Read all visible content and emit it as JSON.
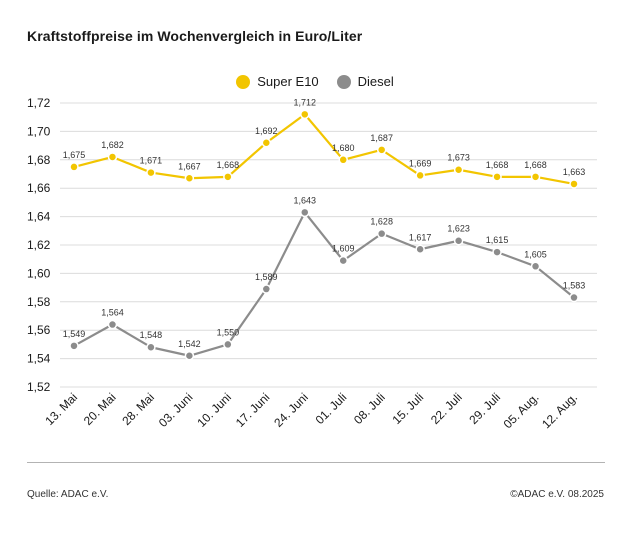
{
  "title": "Kraftstoffpreise im Wochenvergleich in Euro/Liter",
  "source": "Quelle: ADAC e.V.",
  "copyright": "©ADAC e.V. 08.2025",
  "chart_data": {
    "type": "line",
    "title": "Kraftstoffpreise im Wochenvergleich in Euro/Liter",
    "xlabel": "",
    "ylabel": "",
    "ylim": [
      1.52,
      1.72
    ],
    "y_ticks": [
      "1,52",
      "1,54",
      "1,56",
      "1,58",
      "1,60",
      "1,62",
      "1,64",
      "1,66",
      "1,68",
      "1,70",
      "1,72"
    ],
    "grid": "horizontal",
    "legend_position": "top-center",
    "categories": [
      "13. Mai",
      "20. Mai",
      "28. Mai",
      "03. Juni",
      "10. Juni",
      "17. Juni",
      "24. Juni",
      "01. Juli",
      "08. Juli",
      "15. Juli",
      "22. Juli",
      "29. Juli",
      "05. Aug.",
      "12. Aug."
    ],
    "series": [
      {
        "name": "Super E10",
        "color": "#f2c500",
        "values": [
          1.675,
          1.682,
          1.671,
          1.667,
          1.668,
          1.692,
          1.712,
          1.68,
          1.687,
          1.669,
          1.673,
          1.668,
          1.668,
          1.663
        ],
        "labels": [
          "1,675",
          "1,682",
          "1,671",
          "1,667",
          "1,668",
          "1,692",
          "1,712",
          "1,680",
          "1,687",
          "1,669",
          "1,673",
          "1,668",
          "1,668",
          "1,663"
        ]
      },
      {
        "name": "Diesel",
        "color": "#8c8c8c",
        "values": [
          1.549,
          1.564,
          1.548,
          1.542,
          1.55,
          1.589,
          1.643,
          1.609,
          1.628,
          1.617,
          1.623,
          1.615,
          1.605,
          1.583
        ],
        "labels": [
          "1,549",
          "1,564",
          "1,548",
          "1,542",
          "1,550",
          "1,589",
          "1,643",
          "1,609",
          "1,628",
          "1,617",
          "1,623",
          "1,615",
          "1,605",
          "1,583"
        ]
      }
    ]
  }
}
